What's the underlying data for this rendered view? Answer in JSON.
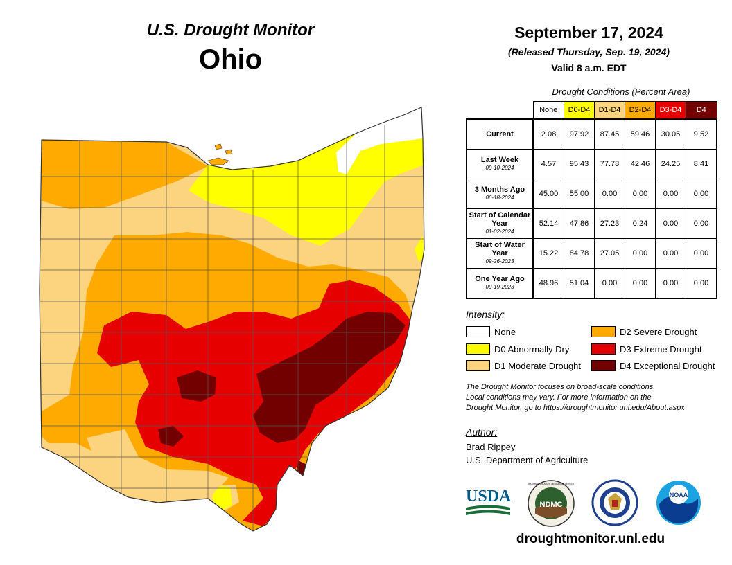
{
  "header": {
    "monitor_title": "U.S. Drought Monitor",
    "state": "Ohio",
    "date": "September 17, 2024",
    "released": "(Released Thursday, Sep. 19, 2024)",
    "valid": "Valid 8 a.m. EDT"
  },
  "table": {
    "caption": "Drought Conditions (Percent Area)",
    "columns": [
      {
        "label": "None",
        "color": "#ffffff",
        "text_color": "#000000"
      },
      {
        "label": "D0-D4",
        "color": "#ffff00",
        "text_color": "#000000"
      },
      {
        "label": "D1-D4",
        "color": "#fcd37f",
        "text_color": "#000000"
      },
      {
        "label": "D2-D4",
        "color": "#ffaa00",
        "text_color": "#000000"
      },
      {
        "label": "D3-D4",
        "color": "#e60000",
        "text_color": "#ffffff"
      },
      {
        "label": "D4",
        "color": "#730000",
        "text_color": "#ffffff"
      }
    ],
    "rows": [
      {
        "label": "Current",
        "sub": "",
        "values": [
          "2.08",
          "97.92",
          "87.45",
          "59.46",
          "30.05",
          "9.52"
        ]
      },
      {
        "label": "Last Week",
        "sub": "09-10-2024",
        "values": [
          "4.57",
          "95.43",
          "77.78",
          "42.46",
          "24.25",
          "8.41"
        ]
      },
      {
        "label": "3 Months Ago",
        "sub": "06-18-2024",
        "values": [
          "45.00",
          "55.00",
          "0.00",
          "0.00",
          "0.00",
          "0.00"
        ]
      },
      {
        "label": "Start of Calendar Year",
        "sub": "01-02-2024",
        "values": [
          "52.14",
          "47.86",
          "27.23",
          "0.24",
          "0.00",
          "0.00"
        ]
      },
      {
        "label": "Start of Water Year",
        "sub": "09-26-2023",
        "values": [
          "15.22",
          "84.78",
          "27.05",
          "0.00",
          "0.00",
          "0.00"
        ]
      },
      {
        "label": "One Year Ago",
        "sub": "09-19-2023",
        "values": [
          "48.96",
          "51.04",
          "0.00",
          "0.00",
          "0.00",
          "0.00"
        ]
      }
    ]
  },
  "legend": {
    "title": "Intensity:",
    "items": [
      {
        "label": "None",
        "color": "#ffffff"
      },
      {
        "label": "D0 Abnormally Dry",
        "color": "#ffff00"
      },
      {
        "label": "D1 Moderate Drought",
        "color": "#fcd37f"
      },
      {
        "label": "D2 Severe Drought",
        "color": "#ffaa00"
      },
      {
        "label": "D3 Extreme Drought",
        "color": "#e60000"
      },
      {
        "label": "D4 Exceptional Drought",
        "color": "#730000"
      }
    ]
  },
  "note": {
    "line1": "The Drought Monitor focuses on broad-scale conditions.",
    "line2": "Local conditions may vary. For more information on the",
    "line3": "Drought Monitor, go to https://droughtmonitor.unl.edu/About.aspx"
  },
  "author": {
    "title": "Author:",
    "name": "Brad Rippey",
    "org": "U.S. Department of Agriculture"
  },
  "logos": {
    "usda": "USDA",
    "ndmc": "NDMC",
    "ndmc_ring": "NATIONAL DROUGHT MITIGATION CENTER",
    "noaa": "NOAA"
  },
  "website": "droughtmonitor.unl.edu"
}
